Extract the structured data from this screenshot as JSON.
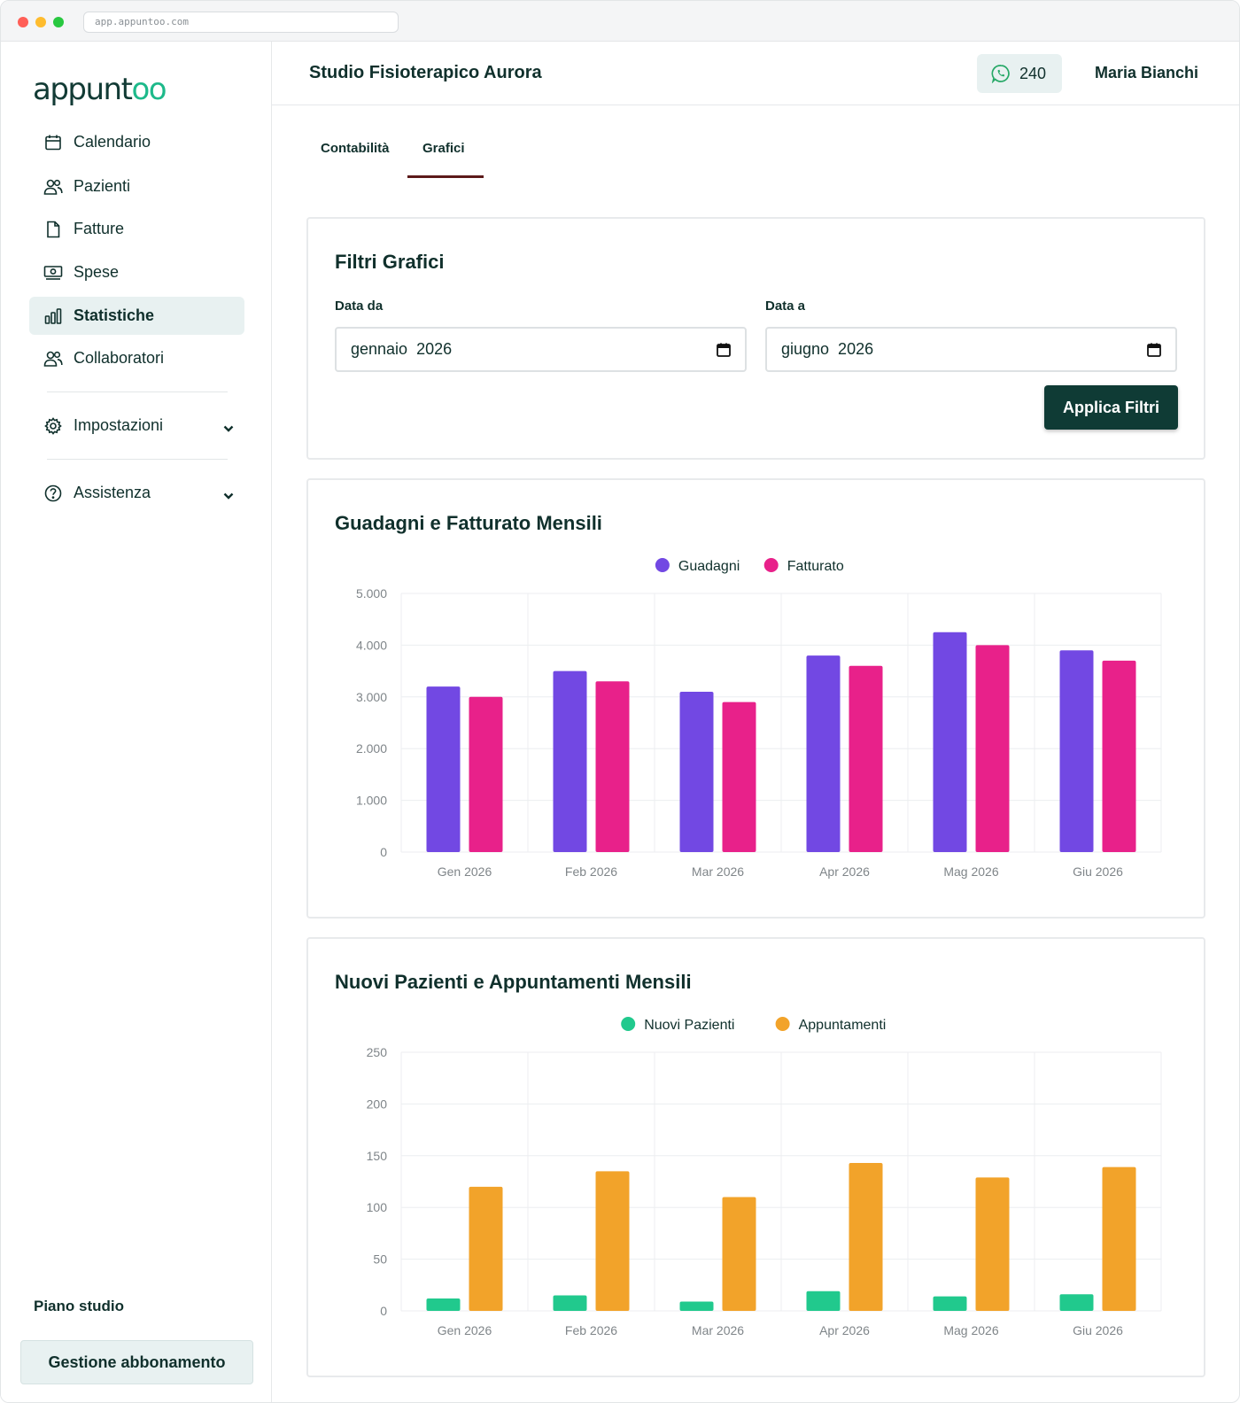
{
  "browser": {
    "url": "app.appuntoo.com"
  },
  "sidebar": {
    "logo_main": "appunt",
    "logo_accent": "oo",
    "items": [
      {
        "label": "Calendario",
        "icon": "calendar-icon"
      },
      {
        "label": "Pazienti",
        "icon": "users-icon"
      },
      {
        "label": "Fatture",
        "icon": "file-icon"
      },
      {
        "label": "Spese",
        "icon": "cash-icon"
      },
      {
        "label": "Statistiche",
        "icon": "bar-chart-icon",
        "active": true
      },
      {
        "label": "Collaboratori",
        "icon": "users-icon"
      }
    ],
    "settings": {
      "label": "Impostazioni",
      "icon": "gear-icon"
    },
    "help": {
      "label": "Assistenza",
      "icon": "help-circle-icon"
    },
    "plan_label": "Piano studio",
    "plan_button": "Gestione abbonamento"
  },
  "header": {
    "studio_name": "Studio Fisioterapico Aurora",
    "whatsapp_count": "240",
    "user_name": "Maria Bianchi"
  },
  "tabs": [
    {
      "label": "Contabilità",
      "active": false
    },
    {
      "label": "Grafici",
      "active": true
    }
  ],
  "filters": {
    "title": "Filtri Grafici",
    "from_label": "Data da",
    "from_value": "gennaio  2026",
    "to_label": "Data a",
    "to_value": "giugno  2026",
    "apply_button": "Applica Filtri"
  },
  "colors": {
    "accent": "#0f3b35",
    "guadagni": "#7248e3",
    "fatturato": "#e8218a",
    "nuovi_pazienti": "#21c98d",
    "appuntamenti": "#f2a32a"
  },
  "chart_data": [
    {
      "type": "bar",
      "title": "Guadagni e Fatturato Mensili",
      "categories": [
        "Gen 2026",
        "Feb 2026",
        "Mar 2026",
        "Apr 2026",
        "Mag 2026",
        "Giu 2026"
      ],
      "series": [
        {
          "name": "Guadagni",
          "color": "#7248e3",
          "values": [
            3200,
            3500,
            3100,
            3800,
            4250,
            3900
          ]
        },
        {
          "name": "Fatturato",
          "color": "#e8218a",
          "values": [
            3000,
            3300,
            2900,
            3600,
            4000,
            3700
          ]
        }
      ],
      "ylim": [
        0,
        5000
      ],
      "yticks": [
        "0",
        "1.000",
        "2.000",
        "3.000",
        "4.000",
        "5.000"
      ],
      "legend": "top-center",
      "grid": true
    },
    {
      "type": "bar",
      "title": "Nuovi Pazienti e Appuntamenti Mensili",
      "categories": [
        "Gen 2026",
        "Feb 2026",
        "Mar 2026",
        "Apr 2026",
        "Mag 2026",
        "Giu 2026"
      ],
      "series": [
        {
          "name": "Nuovi Pazienti",
          "color": "#21c98d",
          "values": [
            12,
            15,
            9,
            19,
            14,
            16
          ]
        },
        {
          "name": "Appuntamenti",
          "color": "#f2a32a",
          "values": [
            120,
            135,
            110,
            143,
            129,
            139
          ]
        }
      ],
      "ylim": [
        0,
        250
      ],
      "yticks": [
        "0",
        "50",
        "100",
        "150",
        "200",
        "250"
      ],
      "legend": "top-center",
      "grid": true
    }
  ]
}
